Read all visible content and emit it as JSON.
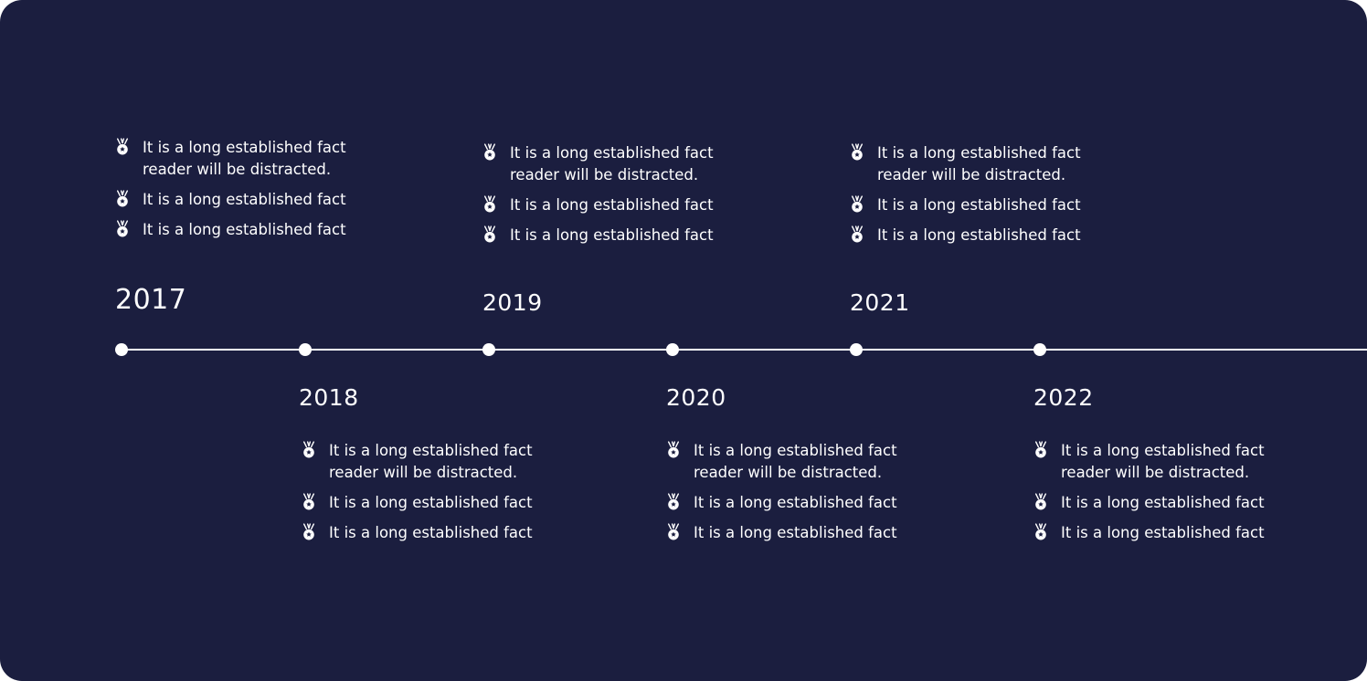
{
  "colors": {
    "background": "#1b1e3f",
    "foreground": "#ffffff"
  },
  "icon": "medal-icon",
  "timeline": [
    {
      "year": "2017",
      "items": [
        {
          "line1": "It is a long established fact",
          "line2": "reader will be distracted."
        },
        {
          "line1": "It is a long established fact",
          "line2": ""
        },
        {
          "line1": "It is a long established fact",
          "line2": ""
        }
      ]
    },
    {
      "year": "2018",
      "items": [
        {
          "line1": "It is a long established fact",
          "line2": "reader will be distracted."
        },
        {
          "line1": "It is a long established fact",
          "line2": ""
        },
        {
          "line1": "It is a long established fact",
          "line2": ""
        }
      ]
    },
    {
      "year": "2019",
      "items": [
        {
          "line1": "It is a long established fact",
          "line2": "reader will be distracted."
        },
        {
          "line1": "It is a long established fact",
          "line2": ""
        },
        {
          "line1": "It is a long established fact",
          "line2": ""
        }
      ]
    },
    {
      "year": "2020",
      "items": [
        {
          "line1": "It is a long established fact",
          "line2": "reader will be distracted."
        },
        {
          "line1": "It is a long established fact",
          "line2": ""
        },
        {
          "line1": "It is a long established fact",
          "line2": ""
        }
      ]
    },
    {
      "year": "2021",
      "items": [
        {
          "line1": "It is a long established fact",
          "line2": "reader will be distracted."
        },
        {
          "line1": "It is a long established fact",
          "line2": ""
        },
        {
          "line1": "It is a long established fact",
          "line2": ""
        }
      ]
    },
    {
      "year": "2022",
      "items": [
        {
          "line1": "It is a long established fact",
          "line2": "reader will be distracted."
        },
        {
          "line1": "It is a long established fact",
          "line2": ""
        },
        {
          "line1": "It is a long established fact",
          "line2": ""
        }
      ]
    }
  ]
}
